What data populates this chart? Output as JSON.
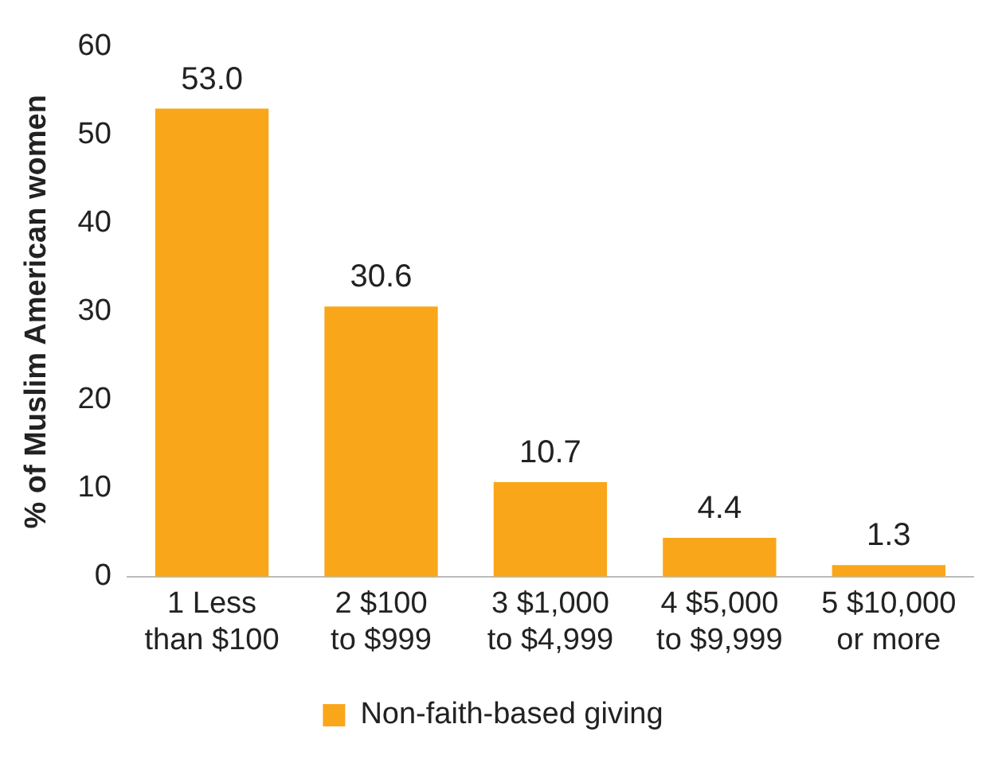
{
  "chart_data": {
    "type": "bar",
    "ylabel": "% of Muslim American women",
    "categories": [
      "1 Less\nthan $100",
      "2 $100\nto $999",
      "3 $1,000\nto $4,999",
      "4 $5,000\nto $9,999",
      "5 $10,000\nor more"
    ],
    "series": [
      {
        "name": "Non-faith-based giving",
        "color": "#faa61a",
        "values": [
          53.0,
          30.6,
          10.7,
          4.4,
          1.3
        ],
        "value_labels": [
          "53.0",
          "30.6",
          "10.7",
          "4.4",
          "1.3"
        ]
      }
    ],
    "ylim": [
      0,
      60
    ],
    "yticks": [
      0,
      10,
      20,
      30,
      40,
      50,
      60
    ],
    "grid": false,
    "legend": "bottom"
  }
}
